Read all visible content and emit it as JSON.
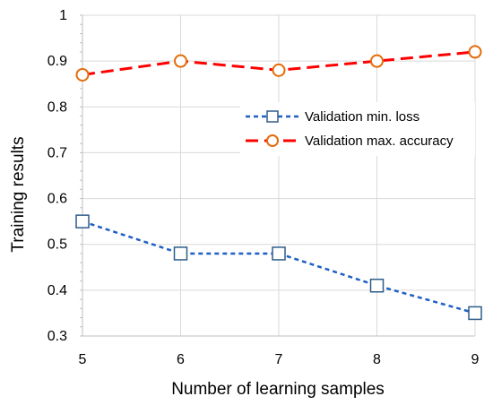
{
  "chart_data": {
    "type": "line",
    "x": [
      5,
      6,
      7,
      8,
      9
    ],
    "xlabel": "Number of learning samples",
    "ylabel": "Training results",
    "xlim": [
      5,
      9
    ],
    "ylim": [
      0.3,
      1.0
    ],
    "xticks": [
      "5",
      "6",
      "7",
      "8",
      "9"
    ],
    "yticks": [
      "0.3",
      "0.4",
      "0.5",
      "0.6",
      "0.7",
      "0.8",
      "0.9",
      "1"
    ],
    "grid": true,
    "legend_position": "center-right",
    "series": [
      {
        "name": "Validation min. loss",
        "values": [
          0.55,
          0.48,
          0.48,
          0.41,
          0.35
        ],
        "color": "#1f5fc4",
        "marker_edge": "#2e5c8a",
        "line_style": "dashed",
        "marker": "square"
      },
      {
        "name": "Validation max. accuracy",
        "values": [
          0.87,
          0.9,
          0.88,
          0.9,
          0.92
        ],
        "color": "#ff0000",
        "marker_edge": "#e36c0a",
        "line_style": "dashed",
        "marker": "circle"
      }
    ]
  }
}
